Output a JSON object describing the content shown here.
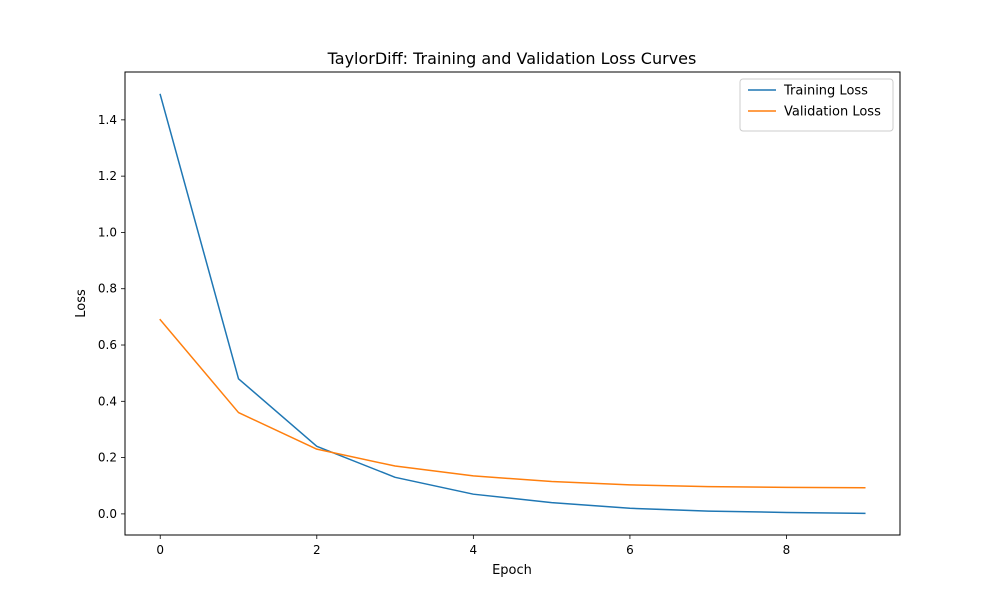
{
  "chart_data": {
    "type": "line",
    "title": "TaylorDiff: Training and Validation Loss Curves",
    "xlabel": "Epoch",
    "ylabel": "Loss",
    "x": [
      0,
      1,
      2,
      3,
      4,
      5,
      6,
      7,
      8,
      9
    ],
    "xlim": [
      -0.45,
      9.45
    ],
    "ylim": [
      -0.075,
      1.57
    ],
    "xticks": [
      0,
      2,
      4,
      6,
      8
    ],
    "xtick_labels": [
      "0",
      "2",
      "4",
      "6",
      "8"
    ],
    "yticks": [
      0.0,
      0.2,
      0.4,
      0.6,
      0.8,
      1.0,
      1.2,
      1.4
    ],
    "ytick_labels": [
      "0.0",
      "0.2",
      "0.4",
      "0.6",
      "0.8",
      "1.0",
      "1.2",
      "1.4"
    ],
    "grid": false,
    "legend_position": "top-right",
    "series": [
      {
        "name": "Training Loss",
        "color": "#1f77b4",
        "values": [
          1.49,
          0.48,
          0.24,
          0.13,
          0.07,
          0.04,
          0.02,
          0.01,
          0.005,
          0.002
        ]
      },
      {
        "name": "Validation Loss",
        "color": "#ff7f0e",
        "values": [
          0.69,
          0.36,
          0.23,
          0.17,
          0.135,
          0.115,
          0.103,
          0.097,
          0.094,
          0.093
        ]
      }
    ]
  }
}
